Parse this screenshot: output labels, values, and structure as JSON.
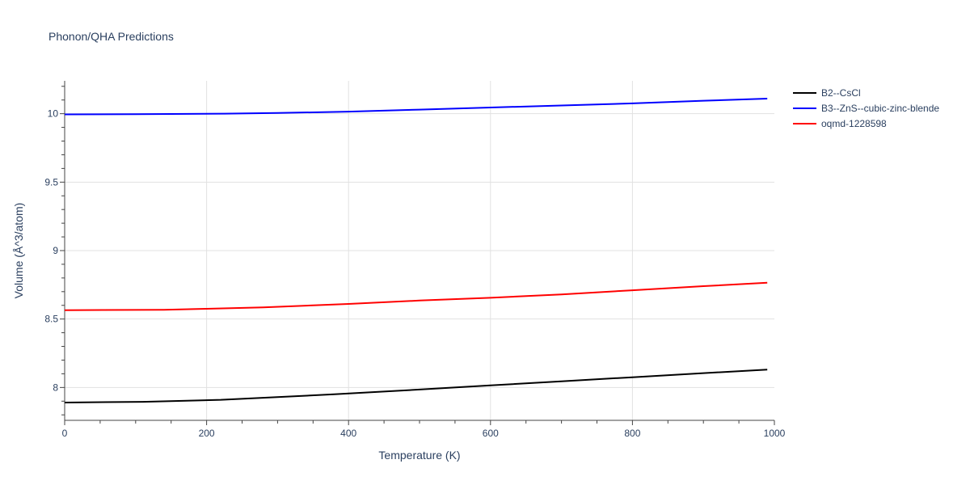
{
  "chart_data": {
    "type": "line",
    "title": "Phonon/QHA Predictions",
    "xlabel": "Temperature (K)",
    "ylabel": "Volume (Å^3/atom)",
    "xlim": [
      0,
      1000
    ],
    "ylim": [
      7.76,
      10.24
    ],
    "x_ticks": [
      0,
      200,
      400,
      600,
      800,
      1000
    ],
    "y_ticks": [
      8,
      8.5,
      9,
      9.5,
      10
    ],
    "x_tick_labels": [
      "0",
      "200",
      "400",
      "600",
      "800",
      "1000"
    ],
    "y_tick_labels": [
      "8",
      "8.5",
      "9",
      "9.5",
      "10"
    ],
    "grid": true,
    "legend_position": "top-right-outside",
    "series": [
      {
        "name": "B2--CsCl",
        "color": "#000000",
        "x": [
          0,
          110,
          220,
          380,
          500,
          600,
          700,
          800,
          900,
          990
        ],
        "y": [
          7.89,
          7.895,
          7.91,
          7.95,
          7.985,
          8.015,
          8.045,
          8.075,
          8.105,
          8.13
        ]
      },
      {
        "name": "B3--ZnS--cubic-zinc-blende",
        "color": "#0000ff",
        "x": [
          0,
          100,
          225,
          300,
          400,
          500,
          600,
          700,
          800,
          900,
          990
        ],
        "y": [
          9.995,
          9.997,
          10.0,
          10.005,
          10.015,
          10.03,
          10.045,
          10.06,
          10.075,
          10.095,
          10.11
        ]
      },
      {
        "name": "oqmd-1228598",
        "color": "#ff0000",
        "x": [
          0,
          140,
          200,
          280,
          400,
          500,
          600,
          700,
          800,
          900,
          990
        ],
        "y": [
          8.565,
          8.568,
          8.575,
          8.585,
          8.61,
          8.635,
          8.655,
          8.68,
          8.71,
          8.74,
          8.765
        ]
      }
    ]
  }
}
